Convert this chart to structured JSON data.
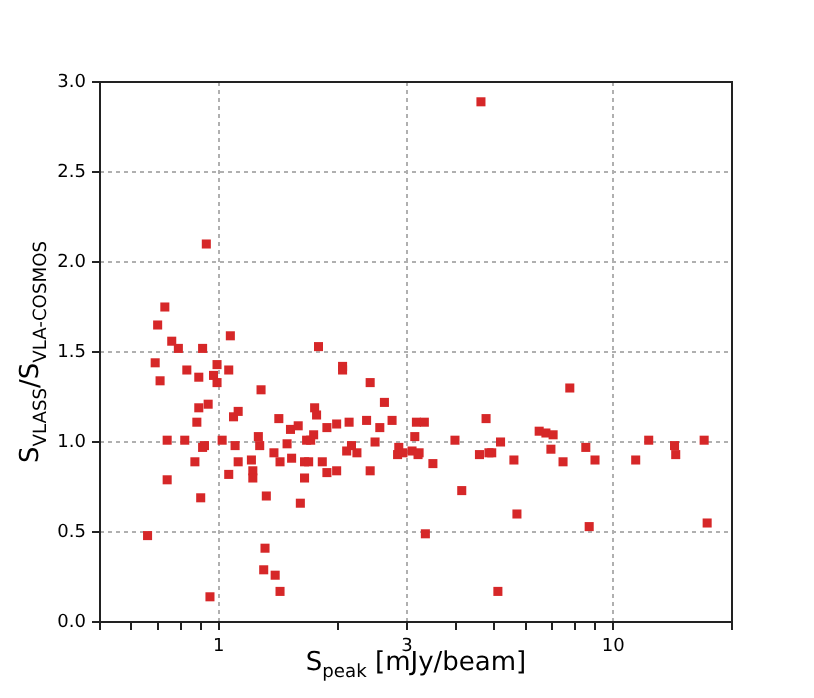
{
  "chart_data": {
    "type": "scatter",
    "xlabel": "S$_{peak}$ [mJy/beam]",
    "ylabel": "S$_{VLASS}$/S$_{VLA-COSMOS}$",
    "x": [
      0.73,
      0.7,
      0.76,
      0.79,
      0.69,
      0.71,
      0.91,
      0.83,
      0.89,
      0.99,
      0.97,
      0.99,
      1.06,
      1.07,
      0.94,
      0.89,
      0.88,
      0.74,
      0.82,
      0.74,
      0.87,
      0.9,
      0.92,
      0.91,
      0.66,
      0.95,
      1.02,
      1.06,
      1.1,
      1.12,
      1.09,
      1.12,
      1.28,
      1.26,
      1.27,
      1.21,
      1.22,
      1.22,
      1.32,
      1.31,
      1.3,
      1.39,
      1.43,
      1.42,
      1.38,
      1.43,
      1.49,
      1.52,
      1.53,
      1.59,
      1.61,
      1.65,
      1.65,
      1.67,
      1.69,
      1.71,
      1.74,
      1.75,
      1.77,
      1.79,
      1.83,
      1.88,
      1.88,
      1.99,
      1.99,
      2.06,
      2.06,
      2.11,
      2.14,
      2.17,
      2.24,
      2.42,
      2.42,
      2.37,
      2.49,
      2.56,
      2.63,
      2.75,
      2.84,
      2.86,
      2.93,
      3.17,
      3.14,
      3.22,
      3.32,
      3.34,
      3.49,
      3.09,
      3.2,
      3.97,
      4.13,
      4.58,
      4.76,
      4.84,
      4.92,
      5.18,
      5.1,
      5.6,
      5.7,
      6.49,
      6.75,
      7.04,
      6.95,
      7.46,
      7.76,
      8.52,
      8.99,
      8.69,
      11.4,
      12.3,
      14.3,
      14.4,
      17.0,
      17.3,
      4.62,
      0.93
    ],
    "values": [
      1.75,
      1.65,
      1.56,
      1.52,
      1.44,
      1.34,
      1.52,
      1.4,
      1.36,
      1.43,
      1.37,
      1.33,
      1.4,
      1.59,
      1.21,
      1.19,
      1.11,
      1.01,
      1.01,
      0.79,
      0.89,
      0.69,
      0.98,
      0.97,
      0.48,
      0.14,
      1.01,
      0.82,
      0.98,
      0.89,
      1.14,
      1.17,
      1.29,
      1.03,
      0.98,
      0.9,
      0.84,
      0.8,
      0.7,
      0.41,
      0.29,
      0.26,
      0.17,
      1.13,
      0.94,
      0.89,
      0.99,
      1.07,
      0.91,
      1.09,
      0.66,
      0.8,
      0.89,
      1.01,
      0.89,
      1.01,
      1.04,
      1.19,
      1.15,
      1.53,
      0.89,
      0.83,
      1.08,
      1.1,
      0.84,
      1.42,
      1.4,
      0.95,
      1.11,
      0.98,
      0.94,
      1.33,
      0.84,
      1.12,
      1.0,
      1.08,
      1.22,
      1.12,
      0.93,
      0.97,
      0.94,
      1.11,
      1.03,
      0.94,
      1.11,
      0.49,
      0.88,
      0.95,
      0.93,
      1.01,
      0.73,
      0.93,
      1.13,
      0.94,
      0.94,
      1.0,
      0.17,
      0.9,
      0.6,
      1.06,
      1.05,
      1.04,
      0.96,
      0.89,
      1.3,
      0.97,
      0.9,
      0.53,
      0.9,
      1.01,
      0.98,
      0.93,
      1.01,
      0.55,
      2.89,
      2.1
    ],
    "color": "#d62728",
    "marker": "square",
    "log": "x",
    "grid": true,
    "legend": false,
    "xlim": [
      0.5,
      20
    ],
    "xticks": [
      {
        "value": 0.5,
        "label": null
      },
      {
        "value": 0.6,
        "label": null
      },
      {
        "value": 0.7,
        "label": null
      },
      {
        "value": 0.8,
        "label": null
      },
      {
        "value": 0.9,
        "label": null
      },
      1,
      {
        "value": 2,
        "label": null
      },
      3,
      {
        "value": 4,
        "label": null
      },
      {
        "value": 5,
        "label": null
      },
      {
        "value": 6,
        "label": null
      },
      {
        "value": 7,
        "label": null
      },
      {
        "value": 8,
        "label": null
      },
      {
        "value": 9,
        "label": null
      },
      10,
      {
        "value": 20,
        "label": null
      }
    ],
    "ylim": [
      0,
      3
    ],
    "yticks": [
      {
        "value": 0,
        "label": "0.0"
      },
      {
        "value": 0.5,
        "label": "0.5"
      },
      {
        "value": 1,
        "label": "1.0"
      },
      {
        "value": 1.5,
        "label": "1.5"
      },
      {
        "value": 2,
        "label": "2.0"
      },
      {
        "value": 2.5,
        "label": "2.5"
      },
      {
        "value": 3,
        "label": "3.0"
      }
    ]
  }
}
